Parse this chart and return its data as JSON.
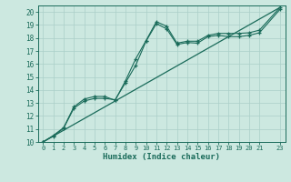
{
  "xlabel": "Humidex (Indice chaleur)",
  "xlim": [
    -0.5,
    23.5
  ],
  "ylim": [
    10,
    20.5
  ],
  "xticks": [
    0,
    1,
    2,
    3,
    4,
    5,
    6,
    7,
    8,
    9,
    10,
    11,
    12,
    13,
    14,
    15,
    16,
    17,
    18,
    19,
    20,
    21,
    23
  ],
  "yticks": [
    10,
    11,
    12,
    13,
    14,
    15,
    16,
    17,
    18,
    19,
    20
  ],
  "bg_color": "#cce8e0",
  "grid_color": "#aacfc8",
  "line_color": "#1a6b5a",
  "line1_x": [
    0,
    1,
    2,
    3,
    4,
    5,
    6,
    7,
    8,
    9,
    10,
    11,
    12,
    13,
    14,
    15,
    16,
    17,
    18,
    19,
    20,
    21,
    23
  ],
  "line1_y": [
    10.0,
    10.5,
    11.1,
    12.7,
    13.3,
    13.5,
    13.5,
    13.2,
    14.7,
    16.4,
    17.8,
    19.25,
    18.9,
    17.6,
    17.75,
    17.75,
    18.2,
    18.35,
    18.35,
    18.35,
    18.4,
    18.6,
    20.35
  ],
  "line2_x": [
    0,
    1,
    2,
    3,
    4,
    5,
    6,
    7,
    8,
    9,
    10,
    11,
    12,
    13,
    14,
    15,
    16,
    17,
    18,
    19,
    20,
    21,
    23
  ],
  "line2_y": [
    10.0,
    10.45,
    11.05,
    12.6,
    13.15,
    13.35,
    13.35,
    13.25,
    14.55,
    15.9,
    17.75,
    19.1,
    18.7,
    17.5,
    17.65,
    17.6,
    18.1,
    18.2,
    18.1,
    18.1,
    18.2,
    18.4,
    20.2
  ],
  "line3_x": [
    0,
    23
  ],
  "line3_y": [
    10.0,
    20.35
  ]
}
